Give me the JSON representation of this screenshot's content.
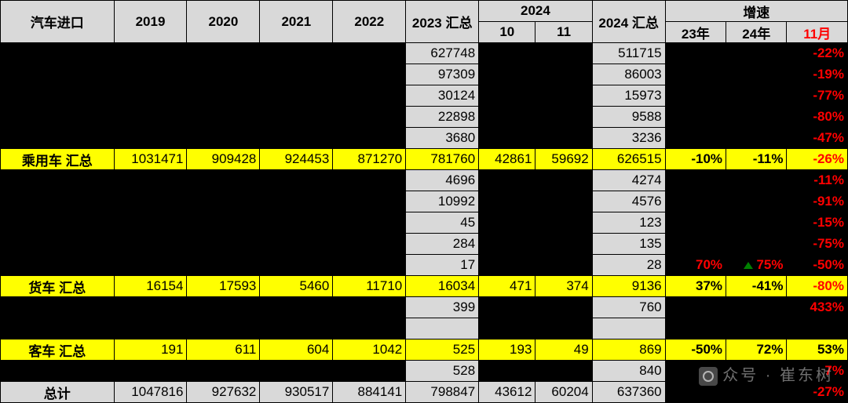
{
  "header": {
    "title": "汽车进口",
    "years": [
      "2019",
      "2020",
      "2021",
      "2022"
    ],
    "sum2023": "2023 汇总",
    "year2024": "2024",
    "m10": "10",
    "m11": "11",
    "sum2024": "2024 汇总",
    "growth": "增速",
    "g23": "23年",
    "g24": "24年",
    "gNov": "11月"
  },
  "colors": {
    "grey": "#d9d9d9",
    "yellow": "#ffff00",
    "black": "#000000",
    "red": "#ff0000",
    "green": "#008000"
  },
  "rows": [
    {
      "type": "data",
      "cells": {
        "sum2023": "627748",
        "sum2024": "511715",
        "gNov": "-22%"
      }
    },
    {
      "type": "data",
      "cells": {
        "sum2023": "97309",
        "sum2024": "86003",
        "gNov": "-19%"
      }
    },
    {
      "type": "data",
      "cells": {
        "sum2023": "30124",
        "sum2024": "15973",
        "gNov": "-77%"
      }
    },
    {
      "type": "data",
      "cells": {
        "sum2023": "22898",
        "sum2024": "9588",
        "gNov": "-80%"
      }
    },
    {
      "type": "data",
      "cells": {
        "sum2023": "3680",
        "sum2024": "3236",
        "gNov": "-47%"
      }
    },
    {
      "type": "yellow",
      "label": "乘用车 汇总",
      "y2019": "1031471",
      "y2020": "909428",
      "y2021": "924453",
      "y2022": "871270",
      "sum2023": "781760",
      "m10": "42861",
      "m11": "59692",
      "sum2024": "626515",
      "g23": "-10%",
      "g24": "-11%",
      "gNov": "-26%",
      "gNovRed": true
    },
    {
      "type": "data",
      "cells": {
        "sum2023": "4696",
        "sum2024": "4274",
        "gNov": "-11%"
      }
    },
    {
      "type": "data",
      "cells": {
        "sum2023": "10992",
        "sum2024": "4576",
        "gNov": "-91%"
      }
    },
    {
      "type": "data",
      "cells": {
        "sum2023": "45",
        "sum2024": "123",
        "gNov": "-15%"
      }
    },
    {
      "type": "data",
      "cells": {
        "sum2023": "284",
        "sum2024": "135",
        "gNov": "-75%"
      }
    },
    {
      "type": "dataflag",
      "cells": {
        "sum2023": "17",
        "sum2024": "28",
        "g23": "70%",
        "g24": "75%",
        "gNov": "-50%"
      }
    },
    {
      "type": "yellow",
      "label": "货车 汇总",
      "y2019": "16154",
      "y2020": "17593",
      "y2021": "5460",
      "y2022": "11710",
      "sum2023": "16034",
      "m10": "471",
      "m11": "374",
      "sum2024": "9136",
      "g23": "37%",
      "g24": "-41%",
      "gNov": "-80%",
      "gNovRed": true
    },
    {
      "type": "data",
      "cells": {
        "sum2023": "399",
        "sum2024": "760",
        "gNov": "433%"
      }
    },
    {
      "type": "blank"
    },
    {
      "type": "yellow",
      "label": "客车 汇总",
      "y2019": "191",
      "y2020": "611",
      "y2021": "604",
      "y2022": "1042",
      "sum2023": "525",
      "m10": "193",
      "m11": "49",
      "sum2024": "869",
      "g23": "-50%",
      "g24": "72%",
      "gNov": "53%",
      "gNovRed": false
    },
    {
      "type": "data",
      "cells": {
        "sum2023": "528",
        "sum2024": "840",
        "gNov": "7%"
      }
    },
    {
      "type": "total",
      "label": "总计",
      "y2019": "1047816",
      "y2020": "927632",
      "y2021": "930517",
      "y2022": "884141",
      "sum2023": "798847",
      "m10": "43612",
      "m11": "60204",
      "sum2024": "637360",
      "gNov": "-27%"
    }
  ],
  "watermark": "众号 · 崔东树"
}
